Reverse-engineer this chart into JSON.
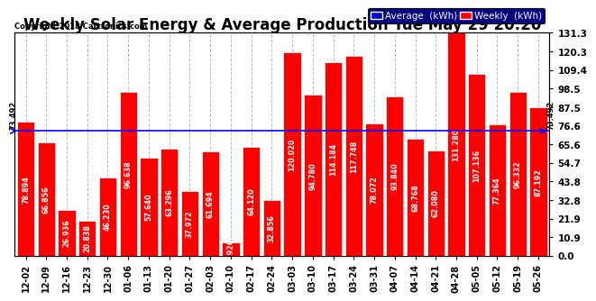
{
  "title": "Weekly Solar Energy & Average Production Tue May 29 20:20",
  "copyright": "Copyright 2018 Cartronics.com",
  "categories": [
    "12-02",
    "12-09",
    "12-16",
    "12-23",
    "12-30",
    "01-06",
    "01-13",
    "01-20",
    "01-27",
    "02-03",
    "02-10",
    "02-17",
    "02-24",
    "03-03",
    "03-10",
    "03-17",
    "03-24",
    "03-31",
    "04-07",
    "04-14",
    "04-21",
    "04-28",
    "05-05",
    "05-12",
    "05-19",
    "05-26"
  ],
  "values": [
    78.894,
    66.856,
    26.936,
    20.838,
    46.23,
    96.638,
    57.64,
    63.296,
    37.972,
    61.694,
    7.926,
    64.12,
    32.856,
    120.02,
    94.78,
    114.184,
    117.748,
    78.072,
    93.84,
    68.768,
    62.08,
    131.28,
    107.136,
    77.364,
    96.332,
    87.192
  ],
  "average": 73.492,
  "bar_color": "#ff0000",
  "avg_line_color": "#0000ff",
  "background_color": "#ffffff",
  "plot_bg_color": "#ffffff",
  "grid_color": "#bbbbbb",
  "yticks": [
    0.0,
    10.9,
    21.9,
    32.8,
    43.8,
    54.7,
    65.6,
    76.6,
    87.5,
    98.5,
    109.4,
    120.3,
    131.3
  ],
  "ylim": [
    0,
    131.3
  ],
  "bar_edge_color": "#ffffff",
  "avg_value": "73.492",
  "legend_avg_color": "#0000cd",
  "legend_weekly_color": "#ff0000",
  "title_fontsize": 12,
  "value_fontsize": 5.8,
  "xlabel_fontsize": 7,
  "ytick_fontsize": 7.5
}
